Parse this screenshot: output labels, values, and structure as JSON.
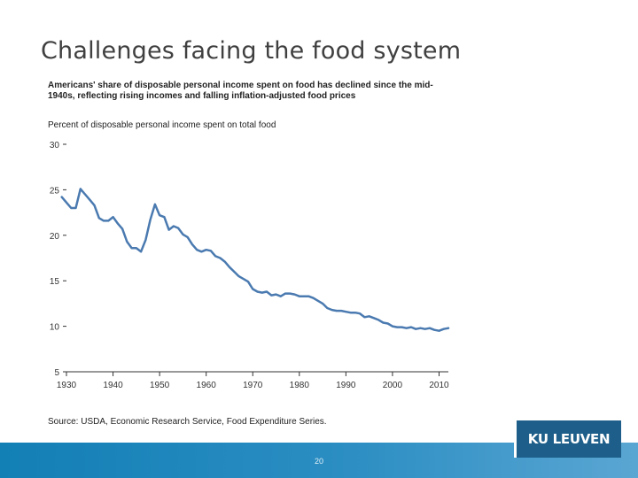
{
  "slide": {
    "title": "Challenges facing the food system",
    "page_number": "20",
    "logo_text": "KU LEUVEN"
  },
  "colors": {
    "line": "#4a7ab0",
    "footer": "#127fb5",
    "logo_bg": "#1d5f8a"
  },
  "chart_data": {
    "type": "line",
    "title": "Americans' share of disposable personal income spent on food has declined since the mid-1940s, reflecting rising incomes and falling inflation-adjusted food prices",
    "ylabel": "Percent of disposable personal income spent on total food",
    "source": "Source: USDA, Economic Research Service, Food Expenditure Series.",
    "xlim": [
      1930,
      2012
    ],
    "ylim": [
      5,
      30
    ],
    "x_ticks": [
      1930,
      1940,
      1950,
      1960,
      1970,
      1980,
      1990,
      2000,
      2010
    ],
    "y_ticks": [
      5,
      10,
      15,
      20,
      25,
      30
    ],
    "grid": false,
    "series": [
      {
        "x": [
          1929,
          1930,
          1931,
          1932,
          1933,
          1934,
          1935,
          1936,
          1937,
          1938,
          1939,
          1940,
          1941,
          1942,
          1943,
          1944,
          1945,
          1946,
          1947,
          1948,
          1949,
          1950,
          1951,
          1952,
          1953,
          1954,
          1955,
          1956,
          1957,
          1958,
          1959,
          1960,
          1961,
          1962,
          1963,
          1964,
          1965,
          1966,
          1967,
          1968,
          1969,
          1970,
          1971,
          1972,
          1973,
          1974,
          1975,
          1976,
          1977,
          1978,
          1979,
          1980,
          1981,
          1982,
          1983,
          1984,
          1985,
          1986,
          1987,
          1988,
          1989,
          1990,
          1991,
          1992,
          1993,
          1994,
          1995,
          1996,
          1997,
          1998,
          1999,
          2000,
          2001,
          2002,
          2003,
          2004,
          2005,
          2006,
          2007,
          2008,
          2009,
          2010,
          2011,
          2012
        ],
        "y": [
          24.2,
          23.6,
          23.0,
          23.0,
          25.1,
          24.5,
          23.9,
          23.3,
          21.9,
          21.6,
          21.6,
          22.0,
          21.3,
          20.7,
          19.3,
          18.6,
          18.6,
          18.2,
          19.5,
          21.7,
          23.4,
          22.2,
          22.0,
          20.6,
          21.0,
          20.8,
          20.1,
          19.8,
          19.0,
          18.4,
          18.2,
          18.4,
          18.3,
          17.7,
          17.5,
          17.1,
          16.5,
          16.0,
          15.5,
          15.2,
          14.9,
          14.1,
          13.8,
          13.7,
          13.8,
          13.4,
          13.5,
          13.3,
          13.6,
          13.6,
          13.5,
          13.3,
          13.3,
          13.3,
          13.1,
          12.8,
          12.5,
          12.0,
          11.8,
          11.7,
          11.7,
          11.6,
          11.5,
          11.5,
          11.4,
          11.0,
          11.1,
          10.9,
          10.7,
          10.4,
          10.3,
          10.0,
          9.9,
          9.9,
          9.8,
          9.9,
          9.7,
          9.8,
          9.7,
          9.8,
          9.6,
          9.5,
          9.7,
          9.8
        ]
      }
    ]
  }
}
